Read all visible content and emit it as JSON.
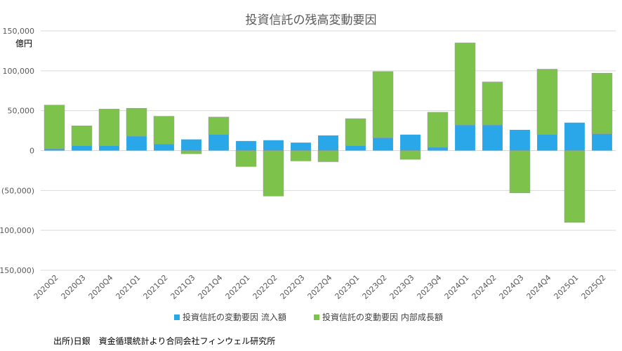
{
  "colors": {
    "inflow": "#2aa7e8",
    "internal": "#7dc34b",
    "negative_label": "#ff0000",
    "axis_text": "#595959"
  },
  "chart_data": {
    "type": "bar",
    "stacked": true,
    "title": "投資信託の残高変動要因",
    "unit_label": "億円",
    "source": "出所)日銀　資金循環統計より合同会社フィンウェル研究所",
    "ylim": [
      -150000,
      150000
    ],
    "y_ticks": [
      150000,
      100000,
      50000,
      0,
      -50000,
      -100000,
      -150000
    ],
    "y_tick_labels": [
      "150,000",
      "100,000",
      "50,000",
      "0",
      "(50,000)",
      "(100,000)",
      "(150,000)"
    ],
    "grid": true,
    "legend_position": "bottom",
    "categories": [
      "2020Q2",
      "2020Q3",
      "2020Q4",
      "2021Q1",
      "2021Q2",
      "2021Q3",
      "2021Q4",
      "2022Q1",
      "2022Q2",
      "2022Q3",
      "2022Q4",
      "2023Q1",
      "2023Q2",
      "2023Q3",
      "2023Q4",
      "2024Q1",
      "2024Q2",
      "2024Q3",
      "2024Q4",
      "2025Q1",
      "2025Q2"
    ],
    "series": [
      {
        "name": "投資信託の変動要因 流入額",
        "values": [
          2000,
          6000,
          6000,
          18000,
          8000,
          14000,
          20000,
          12000,
          13000,
          10000,
          19000,
          6000,
          16000,
          20000,
          4000,
          32000,
          32000,
          26000,
          20000,
          35000,
          21000
        ]
      },
      {
        "name": "投資信託の変動要因 内部成長額",
        "values": [
          55000,
          25000,
          46000,
          35000,
          35000,
          -4000,
          22000,
          -20000,
          -57000,
          -13000,
          -14000,
          34000,
          83000,
          -11000,
          44000,
          103000,
          54000,
          -53000,
          82000,
          -90000,
          76000
        ]
      }
    ]
  }
}
